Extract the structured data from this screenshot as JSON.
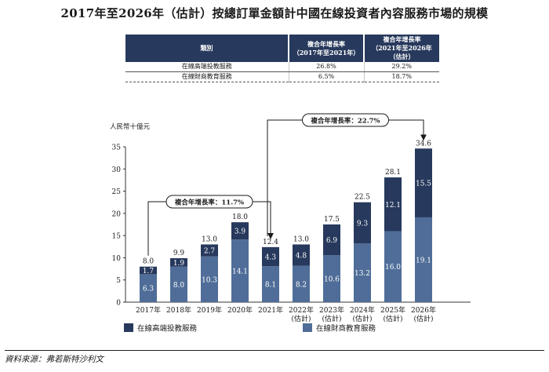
{
  "title": "2017年至2026年（估計）按總訂單金額計中國在線投資者內容服務市場的規模",
  "cagr_table": {
    "headers": {
      "category": "類別",
      "cagr_1_line1": "複合年增長率",
      "cagr_1_line2": "（2017年至2021年）",
      "cagr_2_line1": "複合年增長率",
      "cagr_2_line2": "（2021年至2026年（估計）"
    },
    "rows": [
      {
        "category": "在線高端投教服務",
        "cagr_1": "26.8%",
        "cagr_2": "29.2%"
      },
      {
        "category": "在線財商教育服務",
        "cagr_1": "6.5%",
        "cagr_2": "18.7%"
      }
    ]
  },
  "chart_data": {
    "type": "bar",
    "stacked": true,
    "ylabel": "人民幣十億元",
    "ylim": [
      0,
      35
    ],
    "yticks": [
      0,
      5,
      10,
      15,
      20,
      25,
      30,
      35
    ],
    "grid": false,
    "categories": [
      "2017年",
      "2018年",
      "2019年",
      "2020年",
      "2021年",
      "2022年\n(估計)",
      "2023年\n(估計)",
      "2024年\n(估計)",
      "2025年\n(估計)",
      "2026年\n(估計)"
    ],
    "series": [
      {
        "name": "在線財商教育服務",
        "color": "#4f6d98",
        "values": [
          6.3,
          8.0,
          10.3,
          14.1,
          8.1,
          8.2,
          10.6,
          13.2,
          16.0,
          19.1
        ]
      },
      {
        "name": "在線高端投教服務",
        "color": "#27395c",
        "values": [
          1.7,
          1.9,
          2.7,
          3.9,
          4.3,
          4.8,
          6.9,
          9.3,
          12.1,
          15.5
        ]
      }
    ],
    "totals": [
      "8.0",
      "9.9",
      "13.0",
      "18.0",
      "12.4",
      "13.0",
      "17.5",
      "22.5",
      "28.1",
      "34.6"
    ],
    "annotations": [
      {
        "text": "複合年增長率：11.7%",
        "from_category": 0,
        "to_category": 4
      },
      {
        "text": "複合年增長率：22.7%",
        "from_category": 4,
        "to_category": 9
      }
    ],
    "legend": [
      {
        "label": "在線高端投教服務",
        "color": "#27395c"
      },
      {
        "label": "在線財商教育服務",
        "color": "#4f6d98"
      }
    ],
    "legend_position": "bottom"
  },
  "source": "資料來源：弗若斯特沙利文"
}
